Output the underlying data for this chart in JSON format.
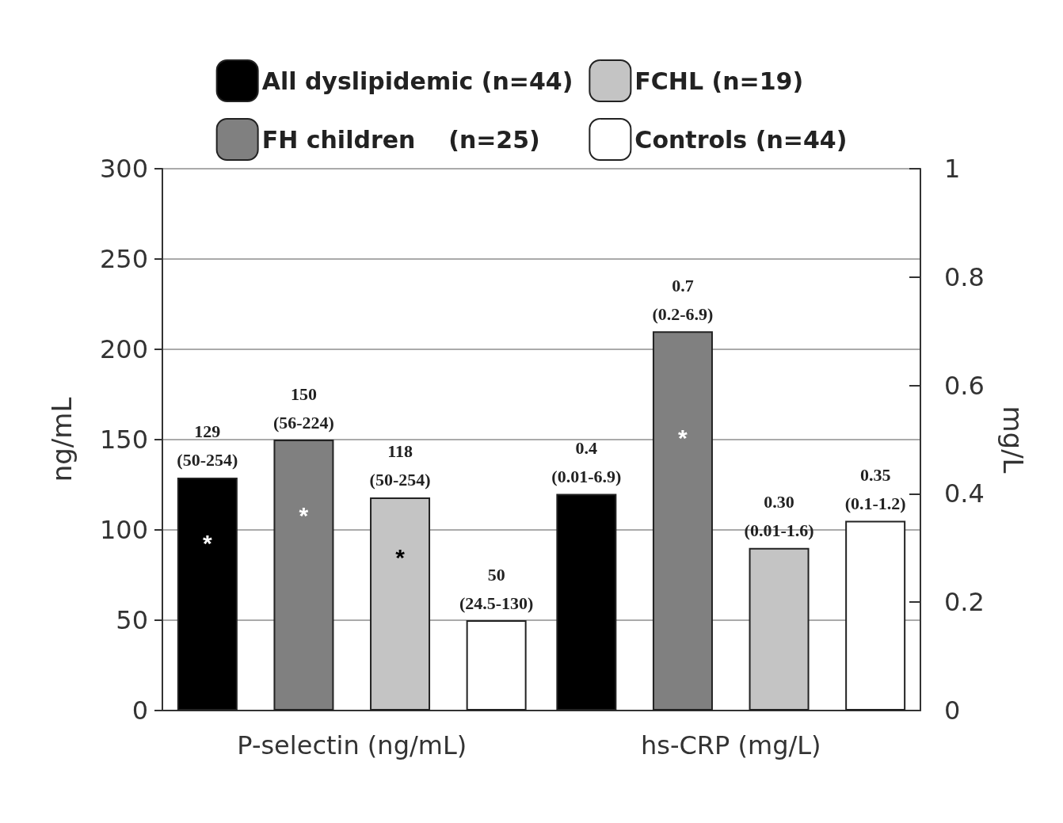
{
  "chart_data": {
    "type": "bar",
    "categories": [
      "P-selectin (ng/mL)",
      "hs-CRP (mg/L)"
    ],
    "ylabel": "ng/mL",
    "y2label": "mg/L",
    "ylim": [
      0,
      300
    ],
    "yticks": [
      0,
      50,
      100,
      150,
      200,
      250,
      300
    ],
    "y2lim": [
      0,
      1
    ],
    "y2ticks": [
      0,
      0.2,
      0.4,
      0.6,
      0.8,
      1
    ],
    "grid": "y",
    "legend": "top",
    "series": [
      {
        "name": "All dyslipidemic (n=44)",
        "color": "#000000",
        "values": [
          129,
          null
        ],
        "value_labels": [
          "129 (50-254)",
          null
        ]
      },
      {
        "name": "FH children    (n=25)",
        "color": "#808080",
        "values": [
          150,
          null
        ],
        "value_labels": [
          "150 (56-224)",
          null
        ]
      },
      {
        "name": "FCHL (n=19)",
        "color": "#c4c4c4",
        "values": [
          118,
          null
        ],
        "value_labels": [
          "118 (50-254)",
          null
        ]
      },
      {
        "name": "Controls (n=44)",
        "color": "#ffffff",
        "values": [
          50,
          null
        ],
        "value_labels": [
          "50 (24.5-130)",
          null
        ]
      },
      {
        "color": "#000000",
        "axis": "y2",
        "values": [
          null,
          0.4
        ],
        "value_labels": [
          null,
          "0.4 (0.01-6.9)"
        ]
      },
      {
        "color": "#808080",
        "axis": "y2",
        "values": [
          null,
          0.7
        ],
        "value_labels": [
          null,
          "0.7 (0.2-6.9)"
        ]
      },
      {
        "color": "#c4c4c4",
        "axis": "y2",
        "values": [
          null,
          0.3
        ],
        "value_labels": [
          null,
          "0.30 (0.01-1.6)"
        ]
      },
      {
        "color": "#ffffff",
        "axis": "y2",
        "values": [
          null,
          0.35
        ],
        "value_labels": [
          null,
          "0.35 (0.1-1.2)"
        ]
      }
    ],
    "annotations": [
      "*",
      "*",
      "*",
      "*"
    ]
  }
}
